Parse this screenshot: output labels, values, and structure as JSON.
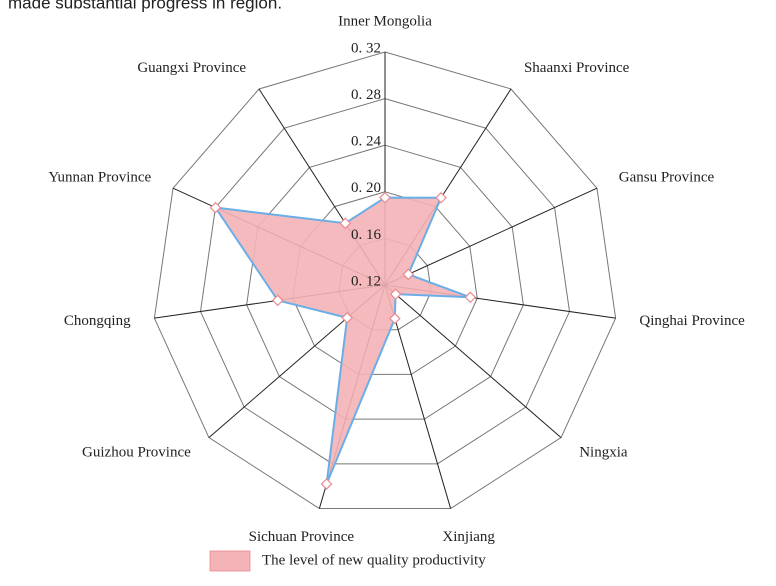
{
  "caption_fragment": "made substantial progress in     region.",
  "chart_data": {
    "type": "radar",
    "categories": [
      "Inner Mongolia",
      "Shaanxi Province",
      "Gansu Province",
      "Qinghai Province",
      "Ningxia",
      "Xinjiang",
      "Sichuan Province",
      "Guizhou Province",
      "Chongqing",
      "Yunnan Province",
      "Guangxi Province"
    ],
    "series": [
      {
        "name": "The level of new quality productivity",
        "color": "#f4b3b6",
        "line_color": "#6aaee8",
        "values": [
          0.195,
          0.209,
          0.142,
          0.194,
          0.132,
          0.15,
          0.298,
          0.163,
          0.213,
          0.28,
          0.183
        ]
      }
    ],
    "rlim": [
      0.12,
      0.32
    ],
    "rticks": [
      {
        "value": 0.12,
        "label": "0. 12"
      },
      {
        "value": 0.16,
        "label": "0. 16"
      },
      {
        "value": 0.2,
        "label": "0. 20"
      },
      {
        "value": 0.24,
        "label": "0. 24"
      },
      {
        "value": 0.28,
        "label": "0. 28"
      },
      {
        "value": 0.32,
        "label": "0. 32"
      }
    ],
    "grid": true,
    "legend": "bottom"
  }
}
